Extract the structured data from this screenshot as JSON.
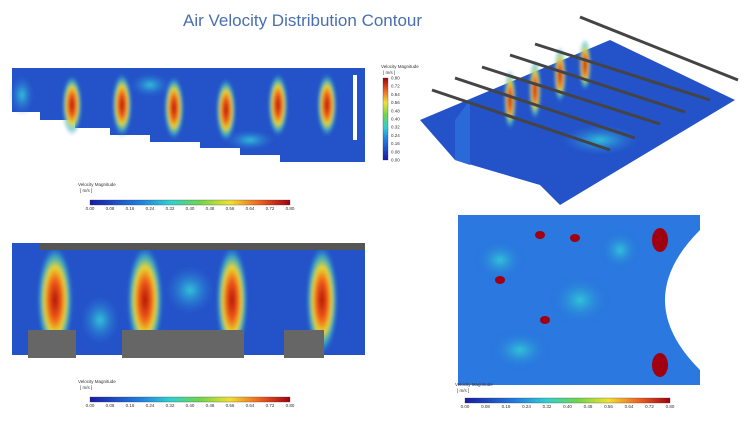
{
  "title": "Air Velocity Distribution Contour",
  "panels": [
    {
      "colorbar": {
        "title": "Velocity Magnitude",
        "unit": "[ m/s ]",
        "orientation": "horizontal",
        "ticks": [
          "0.00",
          "0.08",
          "0.16",
          "0.24",
          "0.32",
          "0.40",
          "0.48",
          "0.56",
          "0.64",
          "0.72",
          "0.80"
        ]
      }
    },
    {
      "colorbar": {
        "title": "Velocity Magnitude",
        "unit": "[ m/s ]",
        "orientation": "vertical",
        "ticks": [
          "0.80",
          "0.72",
          "0.64",
          "0.56",
          "0.48",
          "0.40",
          "0.32",
          "0.24",
          "0.16",
          "0.08",
          "0.00"
        ]
      }
    },
    {
      "colorbar": {
        "title": "Velocity Magnitude",
        "unit": "[ m/s ]",
        "orientation": "horizontal",
        "ticks": [
          "0.00",
          "0.08",
          "0.16",
          "0.24",
          "0.32",
          "0.40",
          "0.48",
          "0.56",
          "0.64",
          "0.72",
          "0.80"
        ]
      }
    },
    {
      "colorbar": {
        "title": "Velocity Magnitude",
        "unit": "[ m/s ]",
        "orientation": "horizontal",
        "ticks": [
          "0.00",
          "0.08",
          "0.16",
          "0.24",
          "0.32",
          "0.40",
          "0.48",
          "0.56",
          "0.64",
          "0.72",
          "0.80"
        ]
      }
    }
  ]
}
